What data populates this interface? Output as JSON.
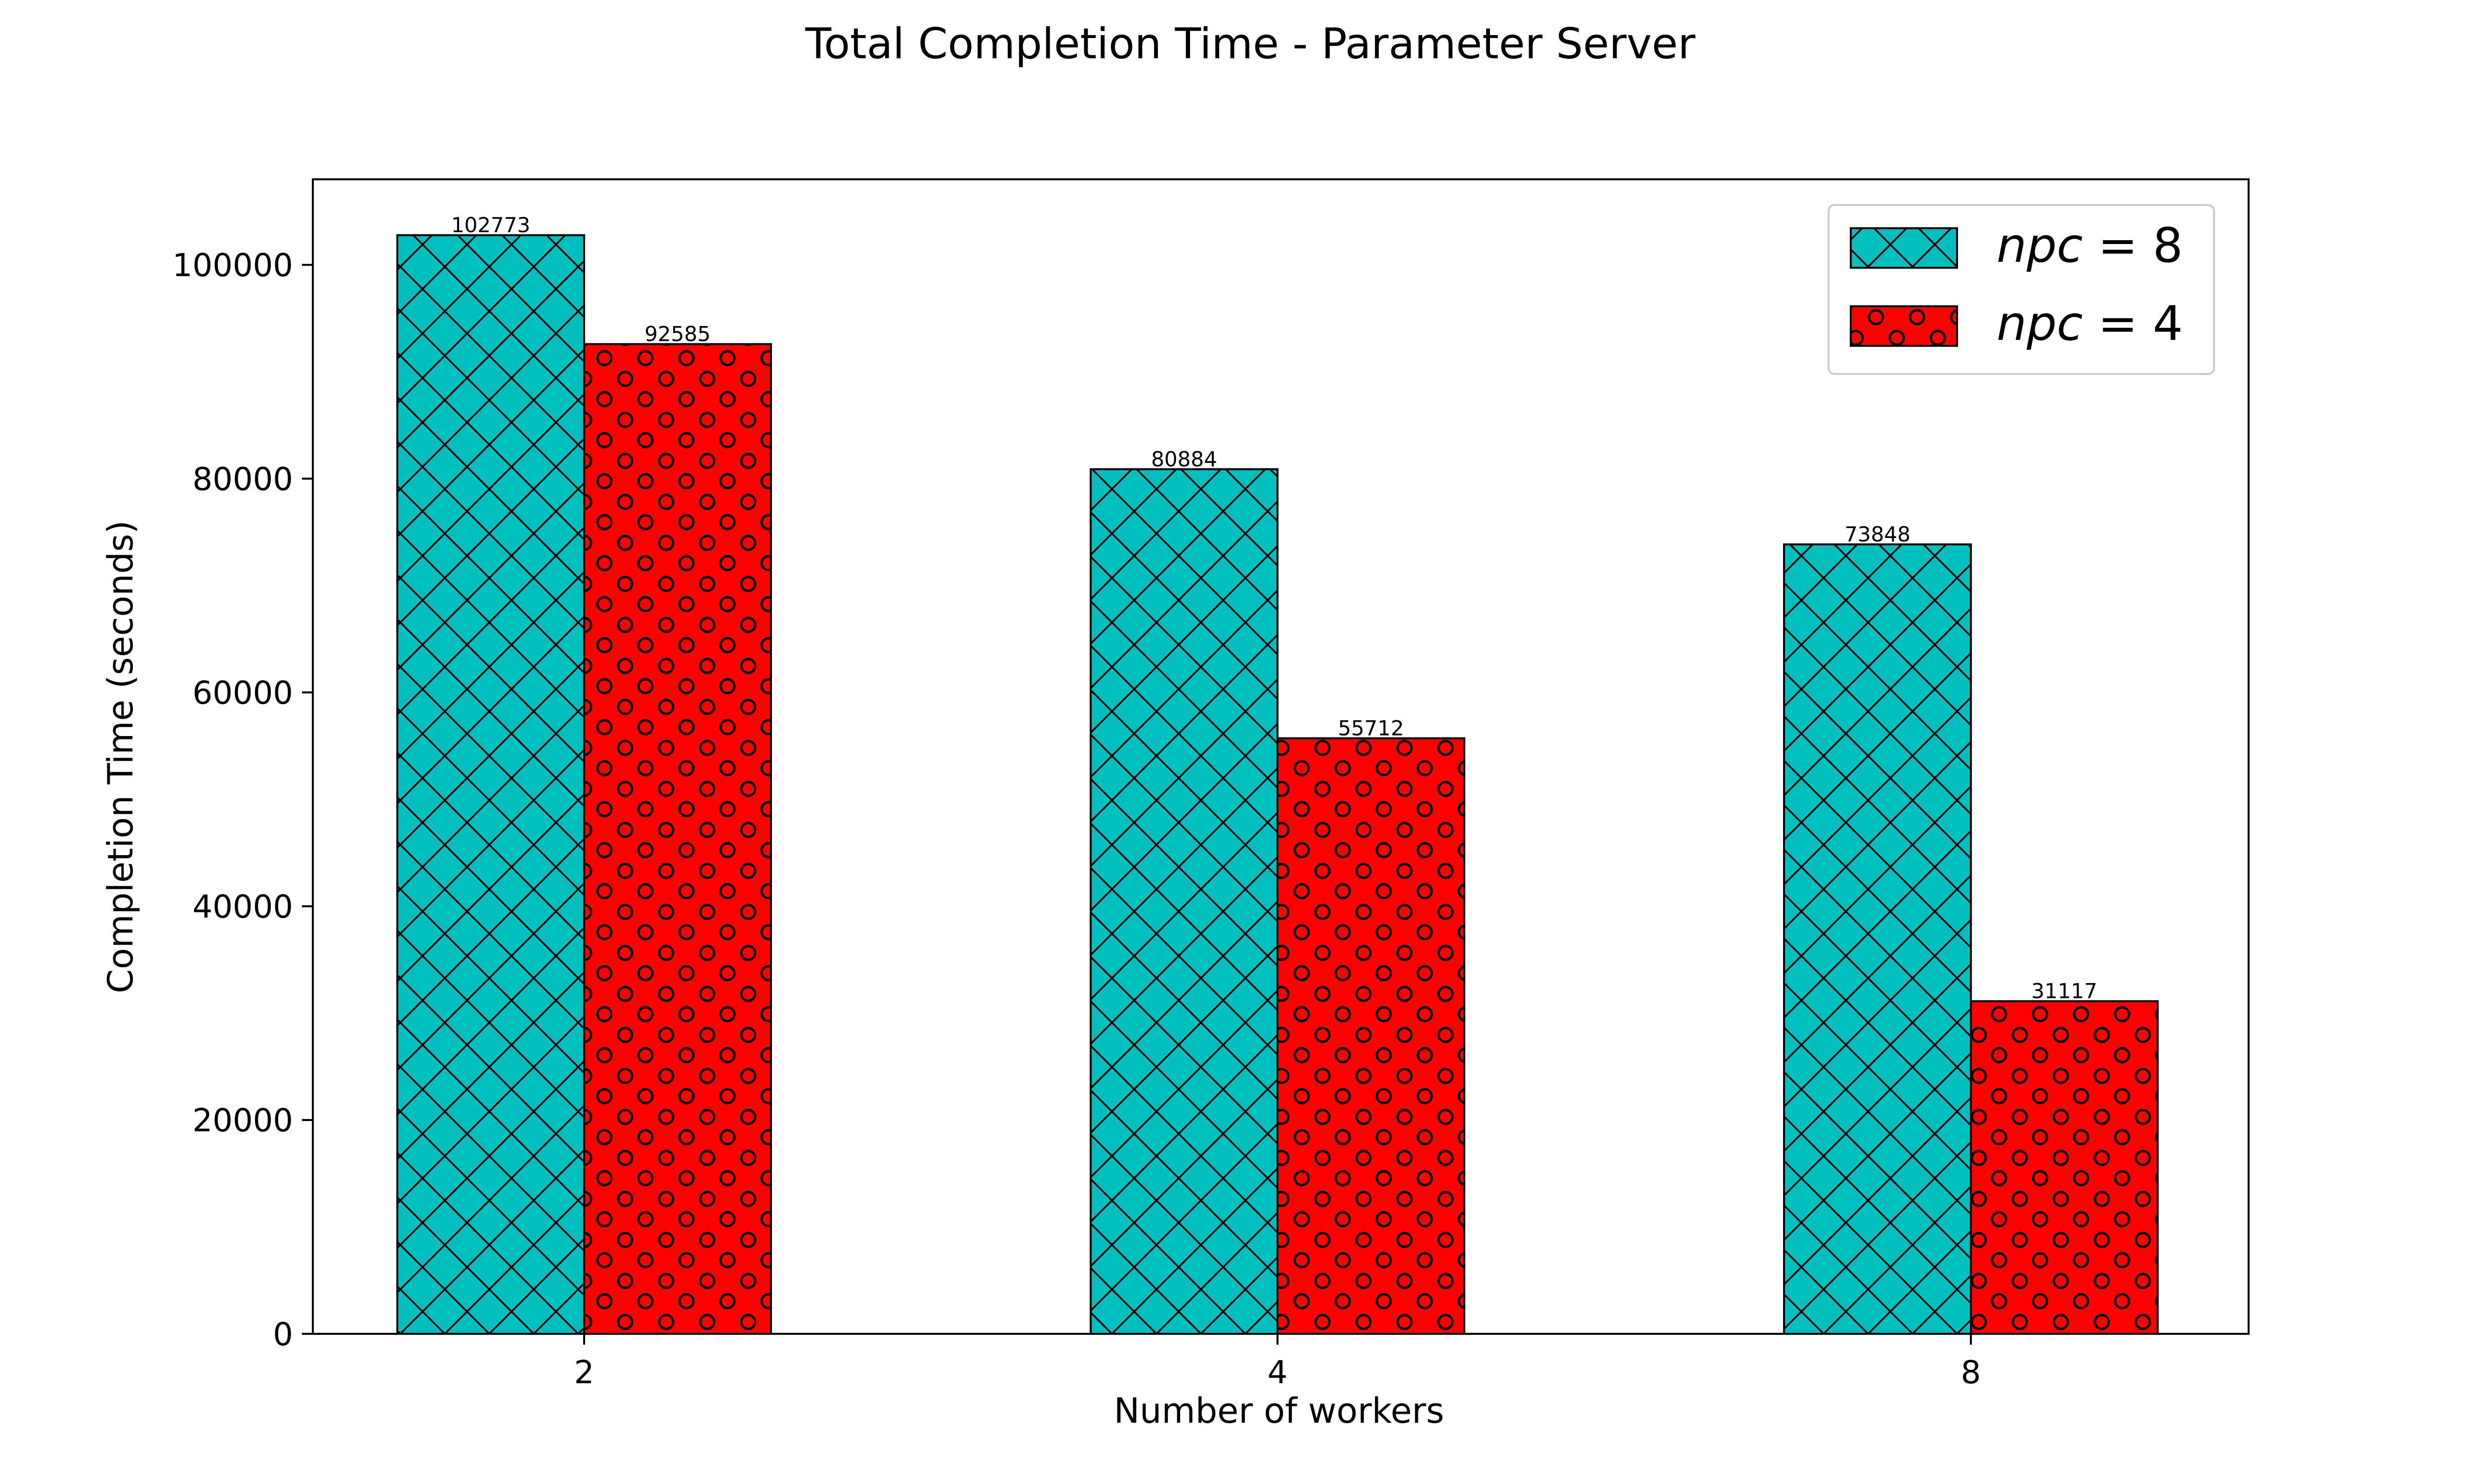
{
  "chart_data": {
    "type": "bar",
    "title": "Total Completion Time - Parameter Server",
    "xlabel": "Number of workers",
    "ylabel": "Completion Time (seconds)",
    "categories": [
      "2",
      "4",
      "8"
    ],
    "ylim": [
      0,
      108000
    ],
    "yticks": [
      0,
      20000,
      40000,
      60000,
      80000,
      100000
    ],
    "ytick_labels": [
      "0",
      "20000",
      "40000",
      "60000",
      "80000",
      "100000"
    ],
    "grid": false,
    "legend_position": "top-right",
    "series": [
      {
        "name": "npc = 8",
        "legend_italic": "npc",
        "legend_rest": " = 8",
        "values": [
          102773,
          80884,
          73848
        ],
        "labels": [
          "102773",
          "80884",
          "73848"
        ],
        "color": "#00bfbf",
        "pattern": "crosshatch"
      },
      {
        "name": "npc = 4",
        "legend_italic": "npc",
        "legend_rest": " = 4",
        "values": [
          92585,
          55712,
          31117
        ],
        "labels": [
          "92585",
          "55712",
          "31117"
        ],
        "color": "#ff0000",
        "pattern": "circles"
      }
    ]
  }
}
